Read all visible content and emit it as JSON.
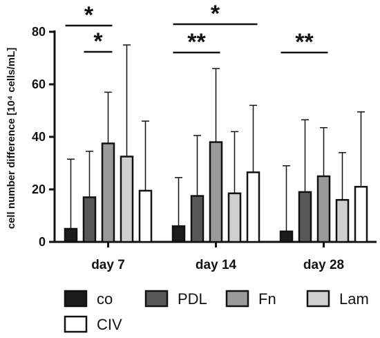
{
  "chart_data": {
    "type": "bar",
    "title": "",
    "xlabel": "",
    "ylabel": "cell number difference [10⁴ cells/mL]",
    "ylim": [
      0,
      80
    ],
    "yticks": [
      "0",
      "20",
      "40",
      "60",
      "80"
    ],
    "categories": [
      "day 7",
      "day 14",
      "day 28"
    ],
    "legend_position": "bottom",
    "grid": false,
    "series": [
      {
        "name": "co",
        "color": "#1c1c1c",
        "values": [
          5,
          6,
          4
        ],
        "error": [
          26.5,
          18.5,
          25
        ]
      },
      {
        "name": "PDL",
        "color": "#585858",
        "values": [
          17,
          17.5,
          19
        ],
        "error": [
          17.5,
          23,
          27.5
        ]
      },
      {
        "name": "Fn",
        "color": "#9a9a9a",
        "values": [
          37.5,
          38,
          25
        ],
        "error": [
          19.5,
          28,
          18.5
        ]
      },
      {
        "name": "Lam",
        "color": "#cfcfcf",
        "values": [
          32.5,
          18.5,
          16
        ],
        "error": [
          42.5,
          23.5,
          18
        ]
      },
      {
        "name": "CIV",
        "color": "#ffffff",
        "values": [
          19.5,
          26.5,
          21
        ],
        "error": [
          26.5,
          25.5,
          28.5
        ]
      }
    ],
    "significance": [
      {
        "category": "day 7",
        "from": "co",
        "to": "Fn",
        "label": "*"
      },
      {
        "category": "day 7",
        "from": "PDL",
        "to": "Fn",
        "label": "*"
      },
      {
        "category": "day 14",
        "from": "co",
        "to": "Fn",
        "label": "**"
      },
      {
        "category": "day 14",
        "from": "co",
        "to": "CIV",
        "label": "*"
      },
      {
        "category": "day 28",
        "from": "co",
        "to": "Fn",
        "label": "**"
      }
    ]
  }
}
